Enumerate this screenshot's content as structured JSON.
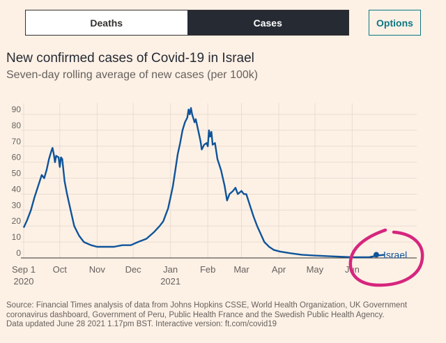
{
  "toggle": {
    "deaths_label": "Deaths",
    "cases_label": "Cases",
    "selected": "Cases"
  },
  "options_label": "Options",
  "title": "New confirmed cases of Covid-19 in Israel",
  "subtitle": "Seven-day rolling average of new cases (per 100k)",
  "source": {
    "line1": "Source: Financial Times analysis of data from Johns Hopkins CSSE, World Health Organization, UK Government",
    "line2": "coronavirus dashboard, Government of Peru, Public Health France and the Swedish Public Health Agency.",
    "line3": "Data updated June 28 2021 1.17pm BST. Interactive version: ft.com/covid19"
  },
  "colors": {
    "background": "#fdf1e6",
    "series": "#0f5499",
    "grid": "#e9dcd2",
    "annotation_circle": "#d6267e",
    "accent": "#0d7680"
  },
  "chart_data": {
    "type": "line",
    "title": "New confirmed cases of Covid-19 in Israel",
    "subtitle": "Seven-day rolling average of new cases (per 100k)",
    "ylim": [
      0,
      95
    ],
    "xlim": [
      "2020-09-01",
      "2021-06-28"
    ],
    "yticks": [
      0,
      10,
      20,
      30,
      40,
      50,
      60,
      70,
      80,
      90
    ],
    "ytick_labels": [
      "0",
      "10",
      "20",
      "30",
      "40",
      "50",
      "60",
      "70",
      "80",
      "90"
    ],
    "xticks": [
      {
        "date": "2020-09-01",
        "label": "Sep 1",
        "sub": "2020"
      },
      {
        "date": "2020-10-01",
        "label": "Oct",
        "sub": ""
      },
      {
        "date": "2020-11-01",
        "label": "Nov",
        "sub": ""
      },
      {
        "date": "2020-12-01",
        "label": "Dec",
        "sub": ""
      },
      {
        "date": "2021-01-01",
        "label": "Jan",
        "sub": "2021"
      },
      {
        "date": "2021-02-01",
        "label": "Feb",
        "sub": ""
      },
      {
        "date": "2021-03-01",
        "label": "Mar",
        "sub": ""
      },
      {
        "date": "2021-04-01",
        "label": "Apr",
        "sub": ""
      },
      {
        "date": "2021-05-01",
        "label": "May",
        "sub": ""
      },
      {
        "date": "2021-06-01",
        "label": "Jun",
        "sub": ""
      }
    ],
    "grid": true,
    "annotation": "hand-drawn circle around series end label",
    "series": [
      {
        "name": "Israel",
        "points": [
          [
            "2020-09-01",
            19
          ],
          [
            "2020-09-04",
            24
          ],
          [
            "2020-09-07",
            30
          ],
          [
            "2020-09-10",
            38
          ],
          [
            "2020-09-13",
            45
          ],
          [
            "2020-09-16",
            52
          ],
          [
            "2020-09-18",
            50
          ],
          [
            "2020-09-20",
            55
          ],
          [
            "2020-09-22",
            62
          ],
          [
            "2020-09-24",
            67
          ],
          [
            "2020-09-25",
            69
          ],
          [
            "2020-09-26",
            65
          ],
          [
            "2020-09-27",
            60
          ],
          [
            "2020-09-28",
            64
          ],
          [
            "2020-09-30",
            63
          ],
          [
            "2020-10-01",
            57
          ],
          [
            "2020-10-02",
            63
          ],
          [
            "2020-10-03",
            62
          ],
          [
            "2020-10-05",
            48
          ],
          [
            "2020-10-07",
            40
          ],
          [
            "2020-10-10",
            30
          ],
          [
            "2020-10-13",
            20
          ],
          [
            "2020-10-17",
            14
          ],
          [
            "2020-10-21",
            10
          ],
          [
            "2020-10-27",
            8
          ],
          [
            "2020-11-01",
            7
          ],
          [
            "2020-11-08",
            7
          ],
          [
            "2020-11-15",
            7
          ],
          [
            "2020-11-22",
            8
          ],
          [
            "2020-11-29",
            8
          ],
          [
            "2020-12-05",
            10
          ],
          [
            "2020-12-12",
            12
          ],
          [
            "2020-12-18",
            16
          ],
          [
            "2020-12-23",
            20
          ],
          [
            "2020-12-26",
            23
          ],
          [
            "2020-12-28",
            27
          ],
          [
            "2020-12-30",
            31
          ],
          [
            "2021-01-01",
            38
          ],
          [
            "2021-01-03",
            45
          ],
          [
            "2021-01-05",
            55
          ],
          [
            "2021-01-07",
            65
          ],
          [
            "2021-01-09",
            72
          ],
          [
            "2021-01-11",
            80
          ],
          [
            "2021-01-13",
            85
          ],
          [
            "2021-01-15",
            88
          ],
          [
            "2021-01-16",
            93
          ],
          [
            "2021-01-17",
            90
          ],
          [
            "2021-01-18",
            94
          ],
          [
            "2021-01-19",
            90
          ],
          [
            "2021-01-21",
            85
          ],
          [
            "2021-01-22",
            87
          ],
          [
            "2021-01-24",
            80
          ],
          [
            "2021-01-26",
            73
          ],
          [
            "2021-01-27",
            68
          ],
          [
            "2021-01-29",
            71
          ],
          [
            "2021-01-31",
            72
          ],
          [
            "2021-02-01",
            70
          ],
          [
            "2021-02-02",
            80
          ],
          [
            "2021-02-03",
            76
          ],
          [
            "2021-02-04",
            79
          ],
          [
            "2021-02-05",
            71
          ],
          [
            "2021-02-07",
            72
          ],
          [
            "2021-02-09",
            62
          ],
          [
            "2021-02-12",
            55
          ],
          [
            "2021-02-15",
            45
          ],
          [
            "2021-02-17",
            36
          ],
          [
            "2021-02-19",
            40
          ],
          [
            "2021-02-22",
            42
          ],
          [
            "2021-02-24",
            44
          ],
          [
            "2021-02-26",
            40
          ],
          [
            "2021-03-01",
            42
          ],
          [
            "2021-03-03",
            40
          ],
          [
            "2021-03-05",
            40
          ],
          [
            "2021-03-08",
            33
          ],
          [
            "2021-03-11",
            26
          ],
          [
            "2021-03-14",
            20
          ],
          [
            "2021-03-17",
            15
          ],
          [
            "2021-03-20",
            10
          ],
          [
            "2021-03-24",
            7
          ],
          [
            "2021-03-28",
            5
          ],
          [
            "2021-04-02",
            4
          ],
          [
            "2021-04-10",
            3
          ],
          [
            "2021-04-20",
            2
          ],
          [
            "2021-05-01",
            1.5
          ],
          [
            "2021-05-15",
            1
          ],
          [
            "2021-06-01",
            0.5
          ],
          [
            "2021-06-15",
            0.5
          ],
          [
            "2021-06-22",
            1.5
          ],
          [
            "2021-06-28",
            2
          ]
        ]
      }
    ]
  }
}
